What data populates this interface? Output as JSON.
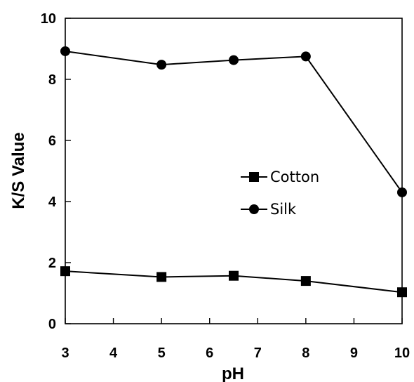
{
  "chart_data": {
    "type": "line",
    "title": "",
    "xlabel": "pH",
    "ylabel": "K/S  Value",
    "xlim": [
      3,
      10
    ],
    "ylim": [
      0,
      10
    ],
    "x_ticks": [
      3,
      4,
      5,
      6,
      7,
      8,
      9,
      10
    ],
    "y_ticks": [
      0,
      2,
      4,
      6,
      8,
      10
    ],
    "grid": false,
    "legend_position": "center-right",
    "series": [
      {
        "name": "Cotton",
        "marker": "square",
        "color": "#000000",
        "x": [
          3,
          5,
          6.5,
          8,
          10
        ],
        "y": [
          1.72,
          1.53,
          1.57,
          1.4,
          1.03
        ]
      },
      {
        "name": "Silk",
        "marker": "circle",
        "color": "#000000",
        "x": [
          3,
          5,
          6.5,
          8,
          10
        ],
        "y": [
          8.92,
          8.48,
          8.63,
          8.75,
          4.3
        ]
      }
    ]
  }
}
